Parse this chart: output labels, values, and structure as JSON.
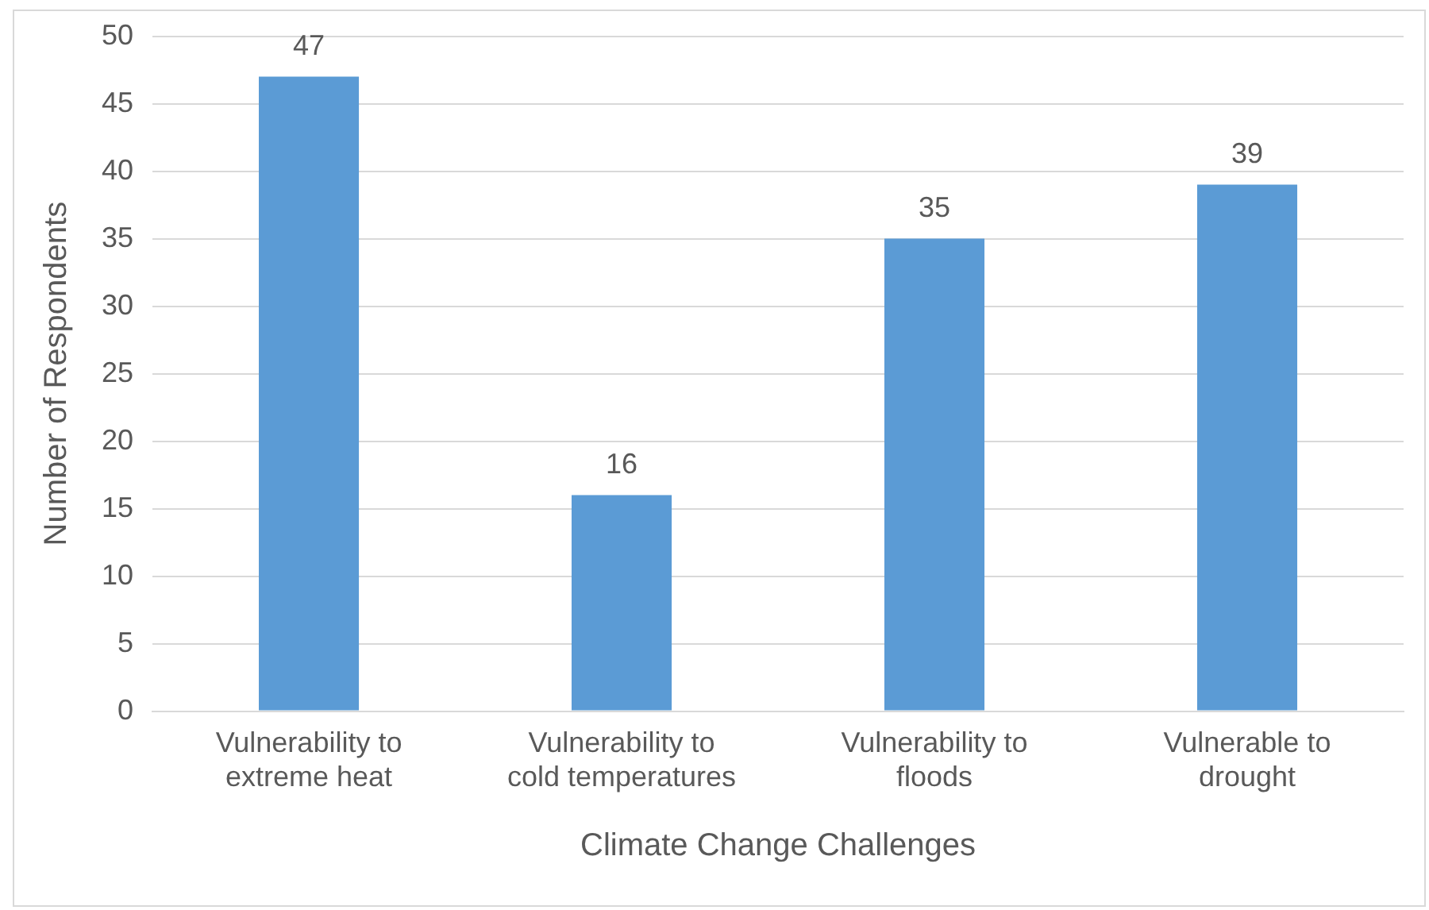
{
  "chart_data": {
    "type": "bar",
    "xlabel": "Climate Change Challenges",
    "ylabel": "Number of Respondents",
    "categories": [
      "Vulnerability to extreme heat",
      "Vulnerability to cold temperatures",
      "Vulnerability to floods",
      "Vulnerable to drought"
    ],
    "values": [
      47,
      16,
      35,
      39
    ],
    "color": "#5b9bd5",
    "ylim": [
      0,
      50
    ],
    "yticks": [
      0,
      5,
      10,
      15,
      20,
      25,
      30,
      35,
      40,
      45,
      50
    ],
    "grid": "y",
    "data_labels": true
  }
}
